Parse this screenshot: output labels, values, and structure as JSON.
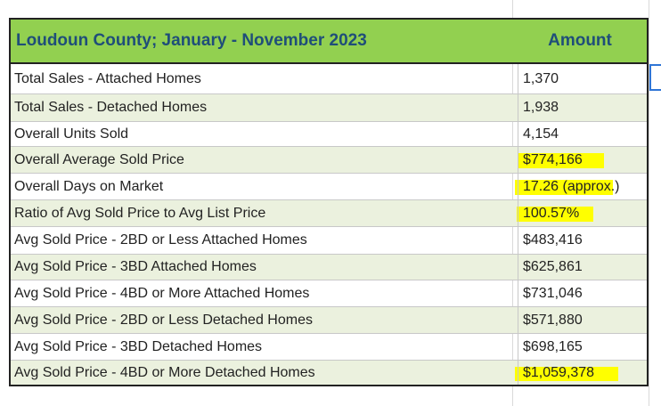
{
  "header": {
    "title": "Loudoun County;  January - November 2023",
    "amount": "Amount"
  },
  "table": {
    "rows": [
      [
        "Total Sales - Attached Homes",
        "1,370"
      ],
      [
        "Total Sales - Detached Homes",
        "1,938"
      ],
      [
        "Overall Units Sold",
        "4,154"
      ],
      [
        "Overall Average Sold Price",
        "$774,166"
      ],
      [
        "Overall Days on Market",
        "17.26 (approx.)"
      ],
      [
        "Ratio of Avg Sold Price to Avg List Price",
        "100.57%"
      ],
      [
        "Avg Sold Price - 2BD or Less Attached Homes",
        "$483,416"
      ],
      [
        "Avg Sold Price - 3BD Attached Homes",
        "$625,861"
      ],
      [
        "Avg Sold Price - 4BD or More Attached Homes",
        "$731,046"
      ],
      [
        "Avg Sold Price - 2BD or Less Detached Homes",
        "$571,880"
      ],
      [
        "Avg Sold Price - 3BD Detached Homes",
        "$698,165"
      ],
      [
        "Avg Sold Price - 4BD or More Detached Homes",
        "$1,059,378"
      ]
    ]
  }
}
